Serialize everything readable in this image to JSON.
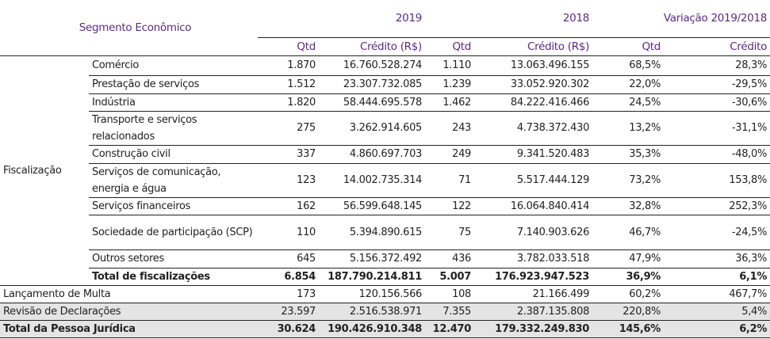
{
  "header": {
    "segment": "Segmento Econômico",
    "y2019": "2019",
    "y2018": "2018",
    "variation": "Variação 2019/2018",
    "qtd": "Qtd",
    "credito_rs": "Crédito (R$)",
    "credito": "Crédito"
  },
  "group_label": "Fiscalização",
  "rows": [
    {
      "label": "Comércio",
      "q19": "1.870",
      "c19": "16.760.528.274",
      "q18": "1.110",
      "c18": "13.063.496.155",
      "vq": "68,5%",
      "vc": "28,3%"
    },
    {
      "label": "Prestação de serviços",
      "q19": "1.512",
      "c19": "23.307.732.085",
      "q18": "1.239",
      "c18": "33.052.920.302",
      "vq": "22,0%",
      "vc": "-29,5%"
    },
    {
      "label": "Indústria",
      "q19": "1.820",
      "c19": "58.444.695.578",
      "q18": "1.462",
      "c18": "84.222.416.466",
      "vq": "24,5%",
      "vc": "-30,6%"
    },
    {
      "label": "Transporte e serviços relacionados",
      "q19": "275",
      "c19": "3.262.914.605",
      "q18": "243",
      "c18": "4.738.372.430",
      "vq": "13,2%",
      "vc": "-31,1%"
    },
    {
      "label": "Construção civil",
      "q19": "337",
      "c19": "4.860.697.703",
      "q18": "249",
      "c18": "9.341.520.483",
      "vq": "35,3%",
      "vc": "-48,0%"
    },
    {
      "label": "Serviços de comunicação, energia e água",
      "q19": "123",
      "c19": "14.002.735.314",
      "q18": "71",
      "c18": "5.517.444.129",
      "vq": "73,2%",
      "vc": "153,8%"
    },
    {
      "label": "Serviços financeiros",
      "q19": "162",
      "c19": "56.599.648.145",
      "q18": "122",
      "c18": "16.064.840.414",
      "vq": "32,8%",
      "vc": "252,3%"
    },
    {
      "label": "Sociedade de participação (SCP)",
      "q19": "110",
      "c19": "5.394.890.615",
      "q18": "75",
      "c18": "7.140.903.626",
      "vq": "46,7%",
      "vc": "-24,5%"
    },
    {
      "label": "Outros setores",
      "q19": "645",
      "c19": "5.156.372.492",
      "q18": "436",
      "c18": "3.782.033.518",
      "vq": "47,9%",
      "vc": "36,3%"
    },
    {
      "label": "Total de fiscalizações",
      "q19": "6.854",
      "c19": "187.790.214.811",
      "q18": "5.007",
      "c18": "176.923.947.523",
      "vq": "36,9%",
      "vc": "6,1%"
    }
  ],
  "multa": {
    "label": "Lançamento de Multa",
    "q19": "173",
    "c19": "120.156.566",
    "q18": "108",
    "c18": "21.166.499",
    "vq": "60,2%",
    "vc": "467,7%"
  },
  "revisao": {
    "label": "Revisão de Declarações",
    "q19": "23.597",
    "c19": "2.516.538.971",
    "q18": "7.355",
    "c18": "2.387.135.808",
    "vq": "220,8%",
    "vc": "5,4%"
  },
  "total": {
    "label": "Total da Pessoa Jurídica",
    "q19": "30.624",
    "c19": "190.426.910.348",
    "q18": "12.470",
    "c18": "179.332.249.830",
    "vq": "145,6%",
    "vc": "6,2%"
  }
}
